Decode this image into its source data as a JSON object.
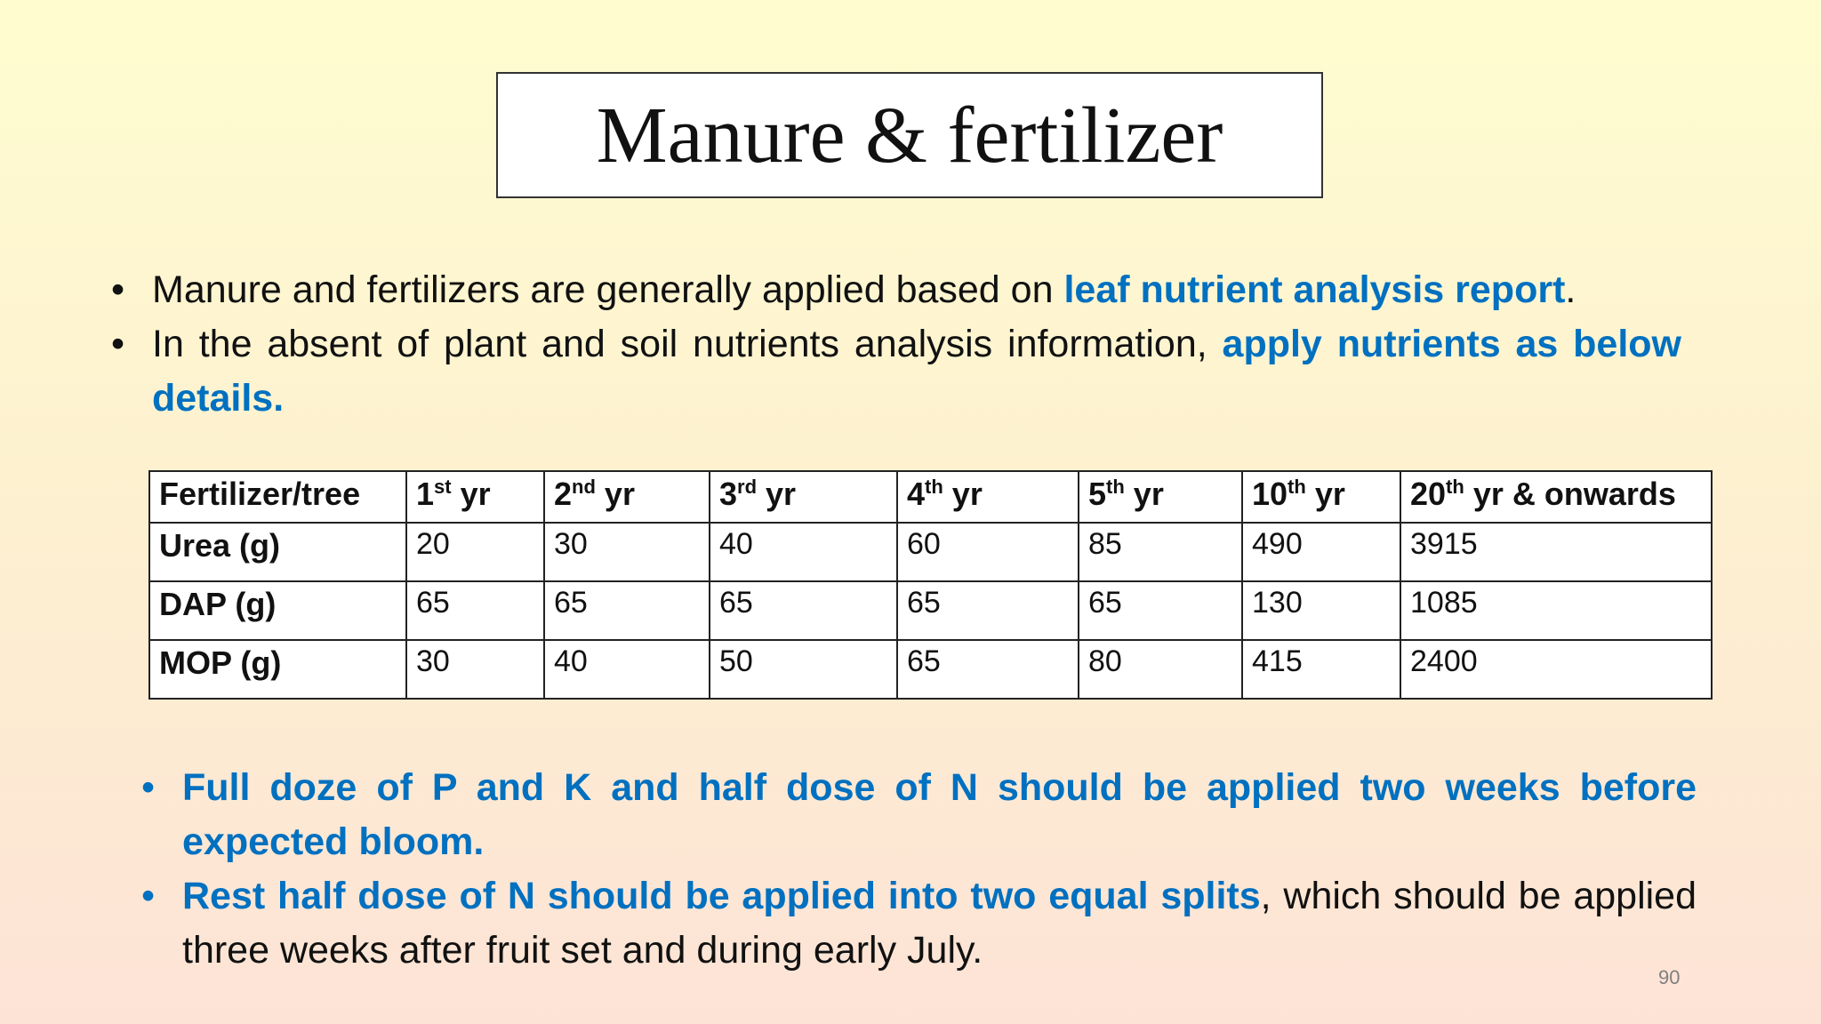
{
  "title": "Manure & fertilizer",
  "top_bullets": [
    {
      "text": "Manure and fertilizers are generally applied based on ",
      "highlight": "leaf nutrient analysis report",
      "after": "."
    },
    {
      "text": "In the absent of plant and soil nutrients analysis information, ",
      "highlight": "apply nutrients as below details.",
      "after": ""
    }
  ],
  "table": {
    "header": [
      {
        "main": "Fertilizer/tree",
        "sup": "",
        "rest": ""
      },
      {
        "main": "1",
        "sup": "st",
        "rest": " yr"
      },
      {
        "main": "2",
        "sup": "nd",
        "rest": " yr"
      },
      {
        "main": "3",
        "sup": "rd",
        "rest": " yr"
      },
      {
        "main": "4",
        "sup": "th",
        "rest": " yr"
      },
      {
        "main": "5",
        "sup": "th",
        "rest": " yr"
      },
      {
        "main": "10",
        "sup": "th",
        "rest": " yr"
      },
      {
        "main": "20",
        "sup": "th",
        "rest": " yr & onwards"
      }
    ],
    "rows": [
      {
        "label": "Urea (g)",
        "values": [
          "20",
          "30",
          "40",
          "60",
          "85",
          "490",
          "3915"
        ]
      },
      {
        "label": "DAP (g)",
        "values": [
          "65",
          "65",
          "65",
          "65",
          "65",
          "130",
          "1085"
        ]
      },
      {
        "label": "MOP (g)",
        "values": [
          "30",
          "40",
          "50",
          "65",
          "80",
          "415",
          "2400"
        ]
      }
    ]
  },
  "bottom_bullets": [
    {
      "highlight": "Full doze of P and K and half dose of N should be applied two weeks before expected bloom.",
      "after": ""
    },
    {
      "highlight": "Rest half dose of N should be applied into two equal splits",
      "after": ", which should be applied three weeks after fruit set and during early July."
    }
  ],
  "page_number": "90",
  "colors": {
    "accent": "#0070c0"
  }
}
